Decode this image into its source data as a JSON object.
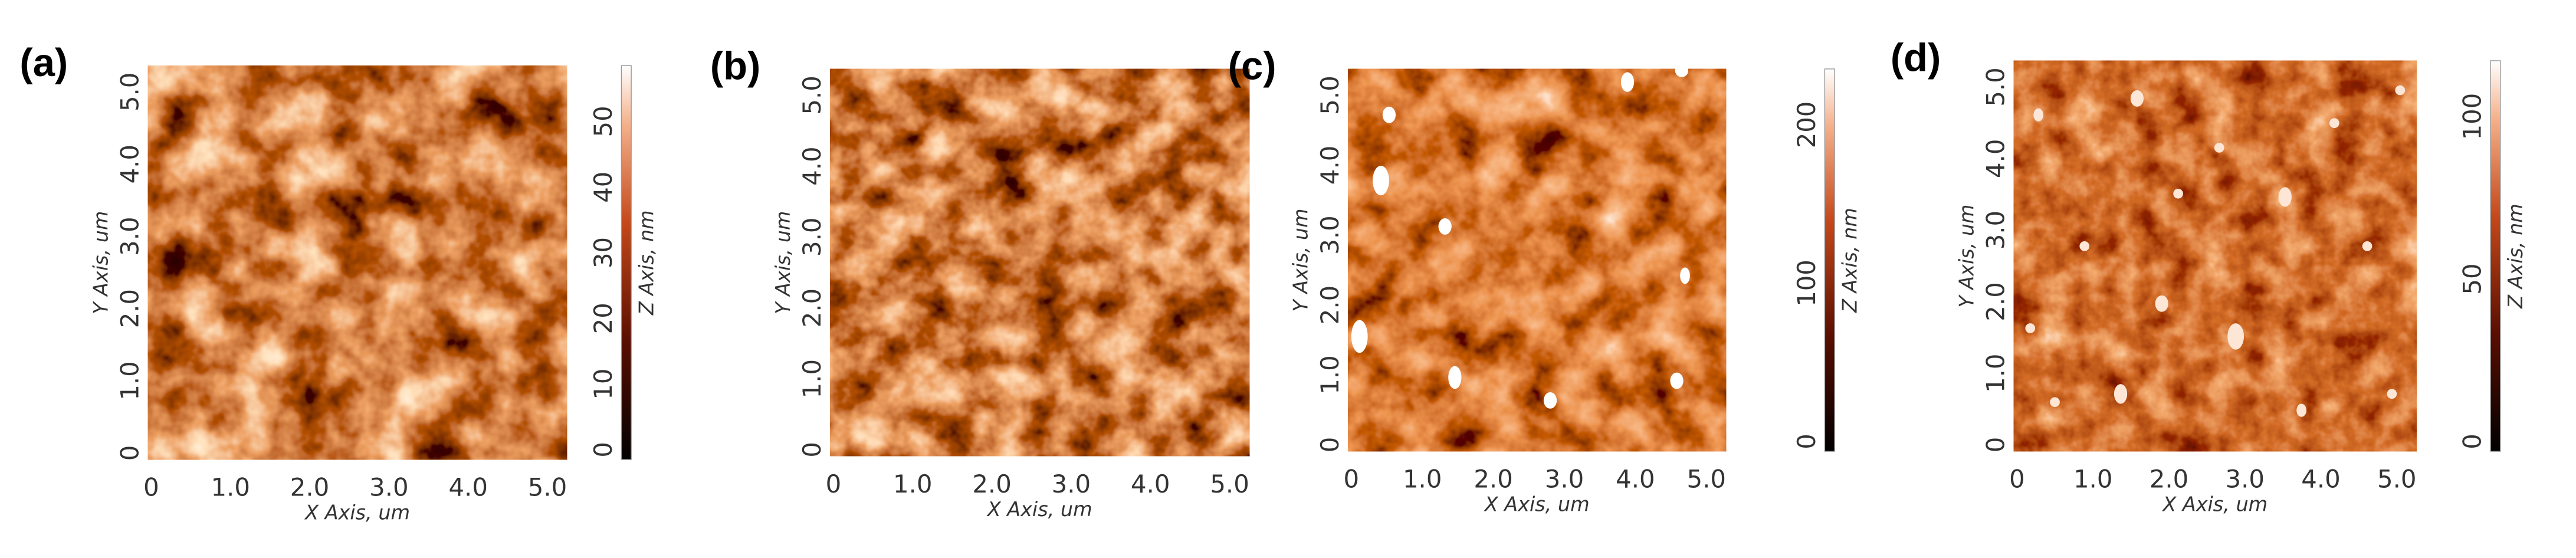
{
  "panels": [
    {
      "label": "(a)",
      "x_axis_label": "X Axis, um",
      "y_axis_label": "Y Axis, um",
      "z_axis_label": "Z Axis, nm",
      "x_ticks": [
        "0",
        "1.0",
        "2.0",
        "3.0",
        "4.0",
        "5.0"
      ],
      "y_ticks": [
        "0",
        "1.0",
        "2.0",
        "3.0",
        "4.0",
        "5.0"
      ],
      "z_ticks": [
        "0",
        "10",
        "20",
        "30",
        "40",
        "50"
      ]
    },
    {
      "label": "(b)",
      "x_axis_label": "X Axis, um",
      "y_axis_label": "Y Axis, um",
      "x_ticks": [
        "0",
        "1.0",
        "2.0",
        "3.0",
        "4.0",
        "5.0"
      ],
      "y_ticks": [
        "0",
        "1.0",
        "2.0",
        "3.0",
        "4.0",
        "5.0"
      ]
    },
    {
      "label": "(c)",
      "x_axis_label": "X Axis, um",
      "y_axis_label": "Y Axis, um",
      "z_axis_label": "Z Axis, nm",
      "x_ticks": [
        "0",
        "1.0",
        "2.0",
        "3.0",
        "4.0",
        "5.0"
      ],
      "y_ticks": [
        "0",
        "1.0",
        "2.0",
        "3.0",
        "4.0",
        "5.0"
      ],
      "z_ticks": [
        "0",
        "100",
        "200"
      ]
    },
    {
      "label": "(d)",
      "x_axis_label": "X Axis, um",
      "y_axis_label": "Y Axis, um",
      "z_axis_label": "Z Axis, nm",
      "x_ticks": [
        "0",
        "1.0",
        "2.0",
        "3.0",
        "4.0",
        "5.0"
      ],
      "y_ticks": [
        "0",
        "1.0",
        "2.0",
        "3.0",
        "4.0",
        "5.0"
      ],
      "z_ticks": [
        "0",
        "50",
        "100"
      ]
    }
  ]
}
